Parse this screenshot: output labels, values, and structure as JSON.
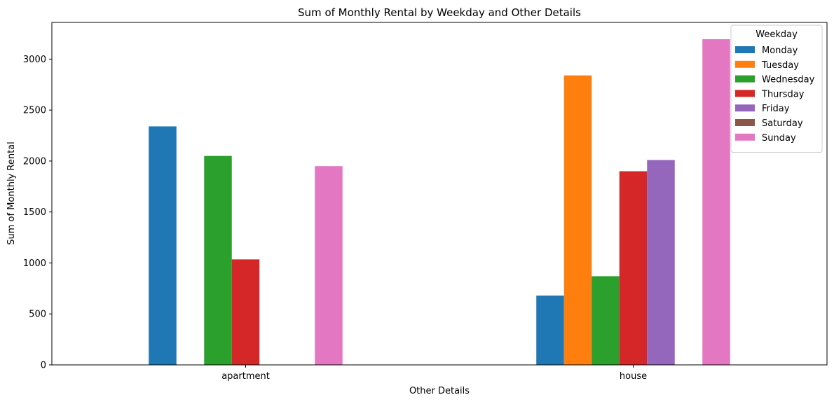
{
  "chart_data": {
    "type": "bar",
    "title": "Sum of Monthly Rental by Weekday and Other Details",
    "xlabel": "Other Details",
    "ylabel": "Sum of Monthly Rental",
    "categories": [
      "apartment",
      "house"
    ],
    "ylim": [
      0,
      3360
    ],
    "yticks": [
      0,
      500,
      1000,
      1500,
      2000,
      2500,
      3000
    ],
    "grid": false,
    "legend": {
      "title": "Weekday",
      "placement": "top-right"
    },
    "series": [
      {
        "name": "Monday",
        "color": "#1f77b4",
        "values": [
          2340,
          680
        ]
      },
      {
        "name": "Tuesday",
        "color": "#ff7f0e",
        "values": [
          0,
          2840
        ]
      },
      {
        "name": "Wednesday",
        "color": "#2ca02c",
        "values": [
          2050,
          870
        ]
      },
      {
        "name": "Thursday",
        "color": "#d62728",
        "values": [
          1035,
          1900
        ]
      },
      {
        "name": "Friday",
        "color": "#9467bd",
        "values": [
          0,
          2010
        ]
      },
      {
        "name": "Saturday",
        "color": "#8c564b",
        "values": [
          0,
          0
        ]
      },
      {
        "name": "Sunday",
        "color": "#e377c2",
        "values": [
          1950,
          3195
        ]
      }
    ]
  }
}
